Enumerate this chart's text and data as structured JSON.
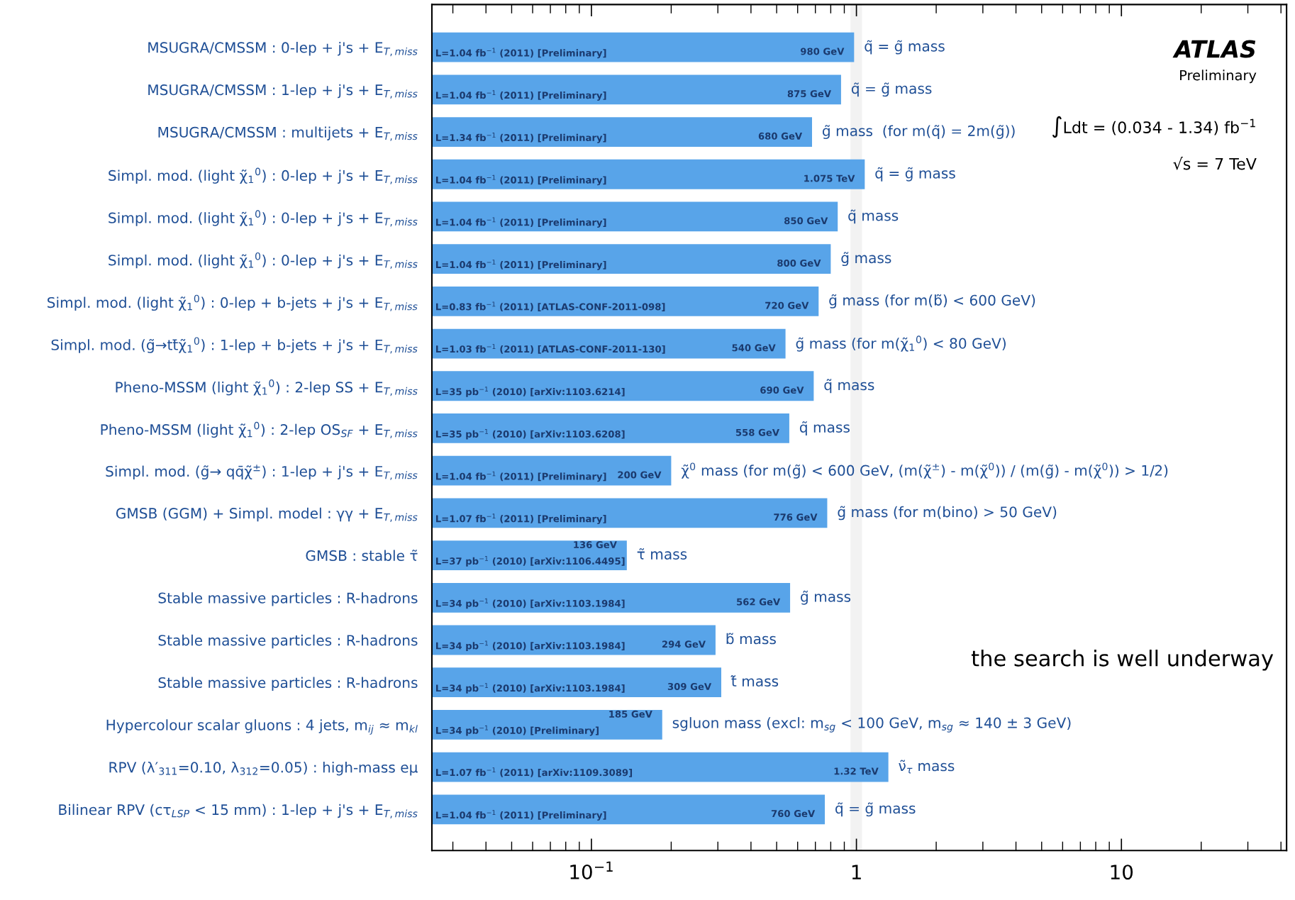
{
  "chart_data": {
    "type": "bar",
    "orientation": "horizontal",
    "log": "x",
    "categories": [
      "MSUGRA/CMSSM : 0-lep + j's + E$_{T,miss}$",
      "MSUGRA/CMSSM : 1-lep + j's + E$_{T,miss}$",
      "MSUGRA/CMSSM : multijets + E$_{T,miss}$",
      "Simpl. mod. (light χ̃$_{1}$$^{0}$) : 0-lep + j's + E$_{T,miss}$",
      "Simpl. mod. (light χ̃$_{1}$$^{0}$) : 0-lep + j's + E$_{T,miss}$",
      "Simpl. mod. (light χ̃$_{1}$$^{0}$) : 0-lep + j's + E$_{T,miss}$",
      "Simpl. mod. (light χ̃$_{1}$$^{0}$) : 0-lep + b-jets + j's + E$_{T,miss}$",
      "Simpl. mod. (g̃→tt̄χ̃$_{1}$$^{0}$) : 1-lep + b-jets + j's + E$_{T,miss}$",
      "Pheno-MSSM (light χ̃$_{1}$$^{0}$) : 2-lep SS + E$_{T,miss}$",
      "Pheno-MSSM (light χ̃$_{1}$$^{0}$) : 2-lep OS$_{SF}$ + E$_{T,miss}$",
      "Simpl. mod. (g̃→ qq̄χ̃$^{±}$) : 1-lep + j's + E$_{T,miss}$",
      "GMSB (GGM) + Simpl. model : γγ + E$_{T,miss}$",
      "GMSB : stable τ̃",
      "Stable massive particles : R-hadrons",
      "Stable massive particles : R-hadrons",
      "Stable massive particles : R-hadrons",
      "Hypercolour scalar gluons : 4 jets, m$_{ij}$ ≈ m$_{kl}$",
      "RPV (λ′$_{311}$=0.10, λ$_{312}$=0.05) : high-mass eμ",
      "Bilinear RPV (cτ$_{LSP}$ < 15 mm) : 1-lep + j's + E$_{T,miss}$"
    ],
    "values": [
      0.98,
      0.875,
      0.68,
      1.075,
      0.85,
      0.8,
      0.72,
      0.54,
      0.69,
      0.558,
      0.2,
      0.776,
      0.136,
      0.562,
      0.294,
      0.309,
      0.185,
      1.32,
      0.76
    ],
    "color": "#58a4e9",
    "xlim": [
      0.025,
      42
    ],
    "xticks": [
      {
        "value": 0.1,
        "label": "10$^{−1}$"
      },
      1,
      10
    ],
    "bands": [
      {
        "axis": "x",
        "from": 0.95,
        "to": 1.05,
        "color": "#f2f2f2"
      }
    ],
    "annotations": [
      "L=1.04 fb$^{−1}$ (2011) [Preliminary]",
      "L=1.04 fb$^{−1}$ (2011) [Preliminary]",
      "L=1.34 fb$^{−1}$ (2011) [Preliminary]",
      "L=1.04 fb$^{−1}$ (2011) [Preliminary]",
      "L=1.04 fb$^{−1}$ (2011) [Preliminary]",
      "L=1.04 fb$^{−1}$ (2011) [Preliminary]",
      "L=0.83 fb$^{−1}$ (2011) [ATLAS-CONF-2011-098]",
      "L=1.03 fb$^{−1}$ (2011) [ATLAS-CONF-2011-130]",
      "L=35 pb$^{−1}$ (2010) [arXiv:1103.6214]",
      "L=35 pb$^{−1}$ (2010) [arXiv:1103.6208]",
      "L=1.04 fb$^{−1}$ (2011) [Preliminary]",
      "L=1.07 fb$^{−1}$ (2011) [Preliminary]",
      "L=37 pb$^{−1}$ (2010) [arXiv:1106.4495]",
      "L=34 pb$^{−1}$ (2010) [arXiv:1103.1984]",
      "L=34 pb$^{−1}$ (2010) [arXiv:1103.1984]",
      "L=34 pb$^{−1}$ (2010) [arXiv:1103.1984]",
      "L=34 pb$^{−1}$ (2010) [Preliminary]",
      "L=1.07 fb$^{−1}$ (2011) [arXiv:1109.3089]",
      "L=1.04 fb$^{−1}$ (2011) [Preliminary]",
      "980 GeV",
      "875 GeV",
      "680 GeV",
      "1.075 TeV",
      "850 GeV",
      "800 GeV",
      "720 GeV",
      "540 GeV",
      "690 GeV",
      "558 GeV",
      "200 GeV",
      "776 GeV",
      "136 GeV",
      "562 GeV",
      "294 GeV",
      "309 GeV",
      "185 GeV",
      "1.32 TeV",
      "760 GeV",
      "q̃ = g̃ mass",
      "q̃ = g̃ mass",
      "g̃ mass  (for m(q̃) = 2m(g̃))",
      "q̃ = g̃ mass",
      "q̃ mass",
      "g̃ mass",
      "g̃ mass (for m(b̃) < 600 GeV)",
      "g̃ mass (for m(χ̃$_{1}$$^{0}$) < 80 GeV)",
      "q̃ mass",
      "q̃ mass",
      "χ̃$^{0}$ mass (for m(g̃) < 600 GeV, (m(χ̃$^{±}$) - m(χ̃$^{0}$)) / (m(g̃) - m(χ̃$^{0}$)) > 1/2)",
      "g̃ mass (for m(bino) > 50 GeV)",
      "τ̃ mass",
      "g̃ mass",
      "b̃ mass",
      "t̃ mass",
      "sgluon mass (excl: m$_{sg}$ < 100 GeV, m$_{sg}$ ≈ 140 ± 3 GeV)",
      "ν̃$_{τ}$ mass",
      "q̃ = g̃ mass",
      "ATLAS",
      "Preliminary",
      "∫Ldt = (0.034 - 1.34) fb$^{−1}$",
      "√s = 7 TeV",
      "the search is well underway"
    ]
  }
}
